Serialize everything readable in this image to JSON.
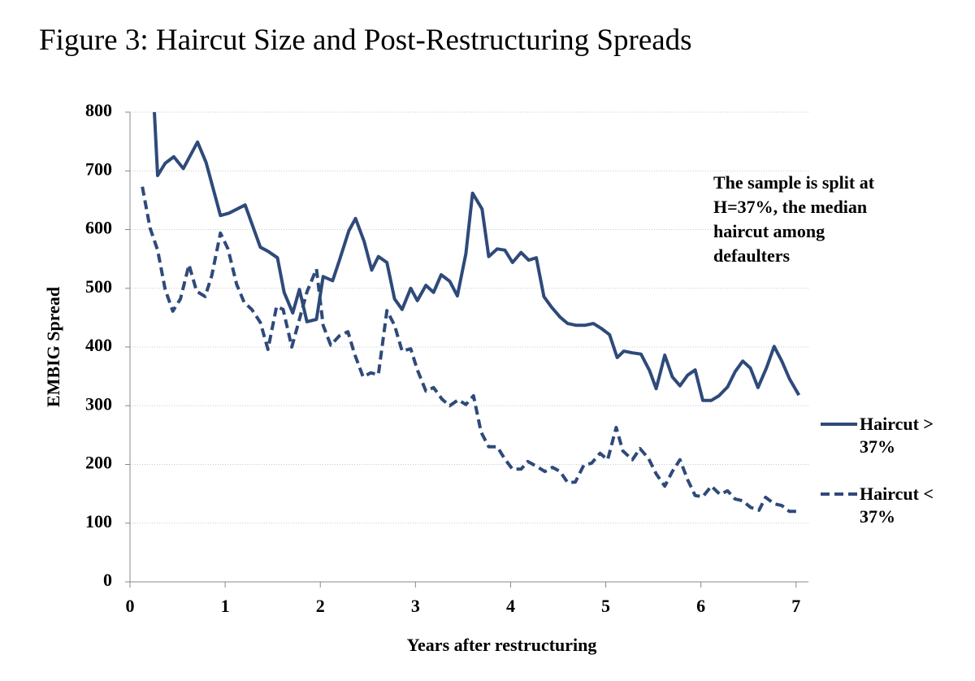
{
  "chart_data": {
    "type": "line",
    "title": "Figure 3: Haircut Size and Post-Restructuring Spreads",
    "x_label": "Years after restructuring",
    "y_label": "EMBIG Spread",
    "annotation": "The sample is split at H=37%, the median haircut among defaulters",
    "xlim": [
      0,
      7.13
    ],
    "xticks": [
      0,
      1,
      2,
      3,
      4,
      5,
      6,
      7
    ],
    "ylim": [
      0,
      800
    ],
    "yticks": [
      0,
      100,
      200,
      300,
      400,
      500,
      600,
      700,
      800
    ],
    "grid": true,
    "legend": "right",
    "series": [
      {
        "name": "Haircut > 37%",
        "color": "#2e4a7a",
        "dash": "solid",
        "x": [
          0.256,
          0.29,
          0.37,
          0.46,
          0.56,
          0.71,
          0.8,
          0.95,
          1.04,
          1.21,
          1.37,
          1.45,
          1.55,
          1.62,
          1.71,
          1.78,
          1.86,
          1.96,
          2.03,
          2.13,
          2.2,
          2.3,
          2.37,
          2.46,
          2.54,
          2.61,
          2.7,
          2.78,
          2.86,
          2.95,
          3.02,
          3.11,
          3.19,
          3.27,
          3.36,
          3.44,
          3.53,
          3.6,
          3.7,
          3.77,
          3.86,
          3.94,
          4.02,
          4.11,
          4.19,
          4.27,
          4.35,
          4.43,
          4.52,
          4.6,
          4.69,
          4.78,
          4.87,
          4.95,
          5.04,
          5.12,
          5.19,
          5.28,
          5.37,
          5.46,
          5.53,
          5.62,
          5.7,
          5.78,
          5.86,
          5.94,
          6.02,
          6.11,
          6.19,
          6.28,
          6.36,
          6.44,
          6.52,
          6.6,
          6.69,
          6.77,
          6.85,
          6.93,
          7.03
        ],
        "values": [
          800,
          692,
          713,
          724,
          704,
          749,
          714,
          624,
          628,
          642,
          570,
          563,
          552,
          493,
          458,
          498,
          443,
          447,
          520,
          513,
          547,
          598,
          619,
          580,
          531,
          554,
          544,
          482,
          464,
          500,
          479,
          505,
          493,
          523,
          512,
          487,
          559,
          662,
          635,
          554,
          567,
          565,
          544,
          561,
          548,
          552,
          486,
          468,
          451,
          440,
          437,
          437,
          440,
          432,
          421,
          382,
          393,
          390,
          388,
          360,
          329,
          386,
          349,
          334,
          352,
          361,
          309,
          309,
          317,
          332,
          358,
          376,
          364,
          331,
          365,
          401,
          376,
          346,
          318
        ]
      },
      {
        "name": "Haircut < 37%",
        "color": "#2e4a7a",
        "dash": "dashed",
        "x": [
          0.13,
          0.21,
          0.29,
          0.37,
          0.45,
          0.53,
          0.62,
          0.7,
          0.79,
          0.86,
          0.95,
          1.03,
          1.12,
          1.2,
          1.28,
          1.37,
          1.45,
          1.54,
          1.61,
          1.7,
          1.78,
          1.86,
          1.96,
          2.03,
          2.11,
          2.2,
          2.29,
          2.36,
          2.45,
          2.53,
          2.61,
          2.7,
          2.78,
          2.86,
          2.95,
          3.02,
          3.11,
          3.19,
          3.28,
          3.36,
          3.45,
          3.53,
          3.61,
          3.69,
          3.77,
          3.86,
          3.94,
          4.02,
          4.11,
          4.18,
          4.27,
          4.36,
          4.44,
          4.52,
          4.6,
          4.68,
          4.77,
          4.85,
          4.94,
          5.02,
          5.11,
          5.18,
          5.28,
          5.36,
          5.45,
          5.53,
          5.62,
          5.7,
          5.78,
          5.86,
          5.94,
          6.02,
          6.11,
          6.2,
          6.28,
          6.36,
          6.44,
          6.52,
          6.61,
          6.68,
          6.77,
          6.85,
          6.93,
          7.03
        ],
        "values": [
          673,
          603,
          565,
          498,
          461,
          482,
          540,
          495,
          486,
          522,
          594,
          567,
          507,
          476,
          464,
          442,
          396,
          469,
          464,
          400,
          447,
          494,
          533,
          437,
          403,
          419,
          426,
          388,
          349,
          356,
          353,
          462,
          437,
          393,
          397,
          361,
          325,
          331,
          311,
          300,
          310,
          302,
          317,
          255,
          230,
          230,
          209,
          192,
          192,
          205,
          197,
          188,
          195,
          188,
          169,
          170,
          199,
          202,
          219,
          208,
          263,
          223,
          208,
          227,
          210,
          184,
          163,
          188,
          208,
          174,
          147,
          145,
          163,
          149,
          155,
          141,
          138,
          127,
          122,
          144,
          133,
          130,
          120,
          120
        ]
      }
    ]
  }
}
